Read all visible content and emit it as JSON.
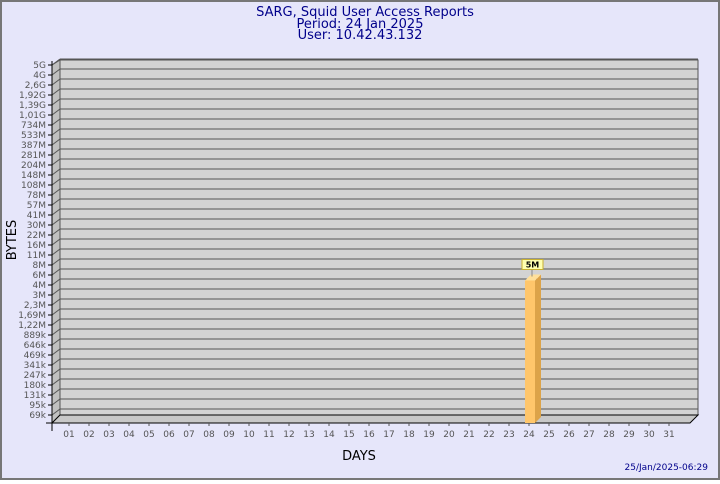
{
  "chart_data": {
    "type": "bar",
    "title": "SARG, Squid User Access Reports",
    "subtitle": [
      "Period: 24 Jan 2025",
      "User: 10.42.43.132"
    ],
    "xlabel": "DAYS",
    "ylabel": "BYTES",
    "y_scale": "log",
    "y_ticks": [
      {
        "label": "5G",
        "value": 5000000000
      },
      {
        "label": "4G",
        "value": 4000000000
      },
      {
        "label": "2,6G",
        "value": 2600000000
      },
      {
        "label": "1,92G",
        "value": 1920000000
      },
      {
        "label": "1,39G",
        "value": 1390000000
      },
      {
        "label": "1,01G",
        "value": 1010000000
      },
      {
        "label": "734M",
        "value": 734000000
      },
      {
        "label": "533M",
        "value": 533000000
      },
      {
        "label": "387M",
        "value": 387000000
      },
      {
        "label": "281M",
        "value": 281000000
      },
      {
        "label": "204M",
        "value": 204000000
      },
      {
        "label": "148M",
        "value": 148000000
      },
      {
        "label": "108M",
        "value": 108000000
      },
      {
        "label": "78M",
        "value": 78000000
      },
      {
        "label": "57M",
        "value": 57000000
      },
      {
        "label": "41M",
        "value": 41000000
      },
      {
        "label": "30M",
        "value": 30000000
      },
      {
        "label": "22M",
        "value": 22000000
      },
      {
        "label": "16M",
        "value": 16000000
      },
      {
        "label": "11M",
        "value": 11000000
      },
      {
        "label": "8M",
        "value": 8000000
      },
      {
        "label": "6M",
        "value": 6000000
      },
      {
        "label": "4M",
        "value": 4000000
      },
      {
        "label": "3M",
        "value": 3000000
      },
      {
        "label": "2,3M",
        "value": 2300000
      },
      {
        "label": "1,69M",
        "value": 1690000
      },
      {
        "label": "1,22M",
        "value": 1220000
      },
      {
        "label": "889k",
        "value": 889000
      },
      {
        "label": "646k",
        "value": 646000
      },
      {
        "label": "469k",
        "value": 469000
      },
      {
        "label": "341k",
        "value": 341000
      },
      {
        "label": "247k",
        "value": 247000
      },
      {
        "label": "180k",
        "value": 180000
      },
      {
        "label": "131k",
        "value": 131000
      },
      {
        "label": "95k",
        "value": 95000
      },
      {
        "label": "69k",
        "value": 69000
      }
    ],
    "categories": [
      "01",
      "02",
      "03",
      "04",
      "05",
      "06",
      "07",
      "08",
      "09",
      "10",
      "11",
      "12",
      "13",
      "14",
      "15",
      "16",
      "17",
      "18",
      "19",
      "20",
      "21",
      "22",
      "23",
      "24",
      "25",
      "26",
      "27",
      "28",
      "29",
      "30",
      "31"
    ],
    "bars": [
      {
        "category": "24",
        "value": 5000000,
        "label": "5M"
      }
    ],
    "grid": true,
    "colors": {
      "background": "#e6e6fa",
      "plot": "#d3d3d3",
      "bar_front": "#ffc66b",
      "bar_side": "#dca349",
      "bar_top": "#ffe09a",
      "text": "#00008b",
      "label_box": "#ffffb0"
    }
  },
  "footer": {
    "timestamp": "25/Jan/2025-06:29"
  }
}
